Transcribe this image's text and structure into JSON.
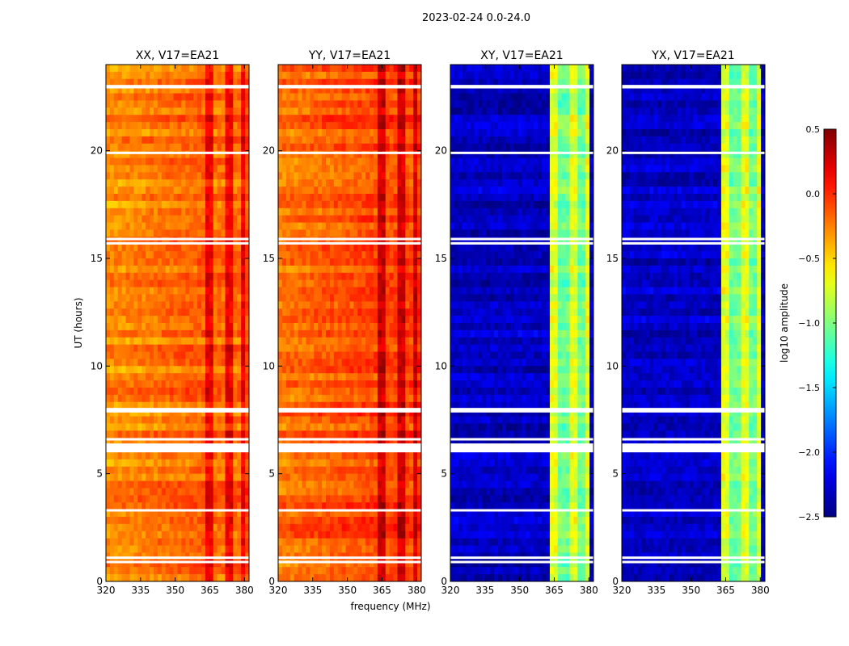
{
  "figure": {
    "suptitle": "2023-02-24 0.0-24.0",
    "xlabel": "frequency (MHz)",
    "ylabel": "UT (hours)"
  },
  "chart_data": {
    "type": "heatmap",
    "colormap": "jet",
    "xlim": [
      320,
      382
    ],
    "ylim": [
      0,
      24
    ],
    "xticks": [
      320,
      335,
      350,
      365,
      380
    ],
    "yticks": [
      0,
      5,
      10,
      15,
      20
    ],
    "colorbar": {
      "label": "log10 amplitude",
      "range": [
        -2.5,
        0.5
      ],
      "ticks": [
        0.5,
        0.0,
        -0.5,
        -1.0,
        -1.5,
        -2.0,
        -2.5
      ],
      "tick_labels": [
        "0.5",
        "0.0",
        "−0.5",
        "−1.0",
        "−1.5",
        "−2.0",
        "−2.5"
      ]
    },
    "bright_band_mhz": [
      363,
      381
    ],
    "flagged_ut_hours": [
      0.9,
      1.1,
      3.3,
      6.05,
      6.15,
      6.25,
      6.35,
      6.6,
      7.9,
      8.0,
      15.7,
      15.9,
      19.9,
      22.95,
      23.0
    ],
    "panels": [
      {
        "title": "XX, V17=EA21",
        "base_level": -0.3,
        "band_level": 0.05
      },
      {
        "title": "YY, V17=EA21",
        "base_level": -0.2,
        "band_level": 0.2
      },
      {
        "title": "XY, V17=EA21",
        "base_level": -2.3,
        "band_level": -0.8
      },
      {
        "title": "YX, V17=EA21",
        "base_level": -2.3,
        "band_level": -0.8
      }
    ]
  }
}
